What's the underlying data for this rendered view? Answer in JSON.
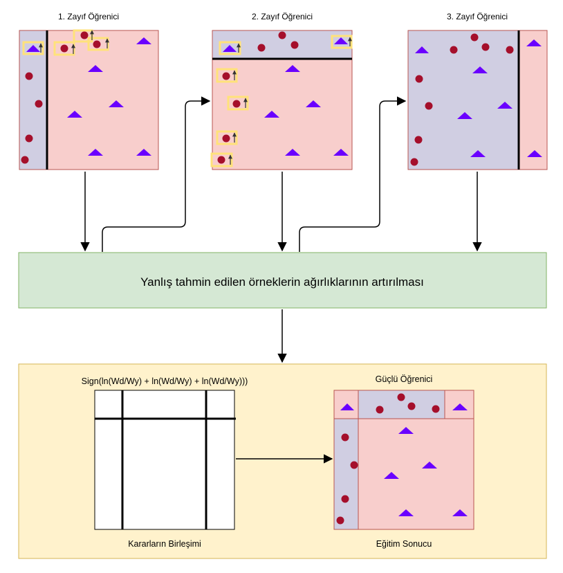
{
  "learners": [
    {
      "title": "1. Zayıf Öğrenici"
    },
    {
      "title": "2. Zayıf Öğrenici"
    },
    {
      "title": "3. Zayıf Öğrenici"
    }
  ],
  "process": {
    "label": "Yanlış tahmin edilen örneklerin ağırlıklarının artırılması"
  },
  "result": {
    "formula": "Sign(ln(Wd/Wy) + ln(Wd/Wy) + ln(Wd/Wy)))",
    "combine_label": "Kararların Birleşimi",
    "strong_title": "Güçlü Öğrenici",
    "outcome_label": "Eğitim Sonucu"
  },
  "colors": {
    "red_region": "#f8cecc",
    "blue_region": "#d0cee2",
    "region_border": "#b85450",
    "circle": "#a50f2b",
    "triangle": "#6a00ff",
    "highlight": "#ffe27a",
    "process_fill": "#d5e8d4",
    "process_border": "#82b366",
    "result_fill": "#fff2cc",
    "result_border": "#d6b656"
  }
}
